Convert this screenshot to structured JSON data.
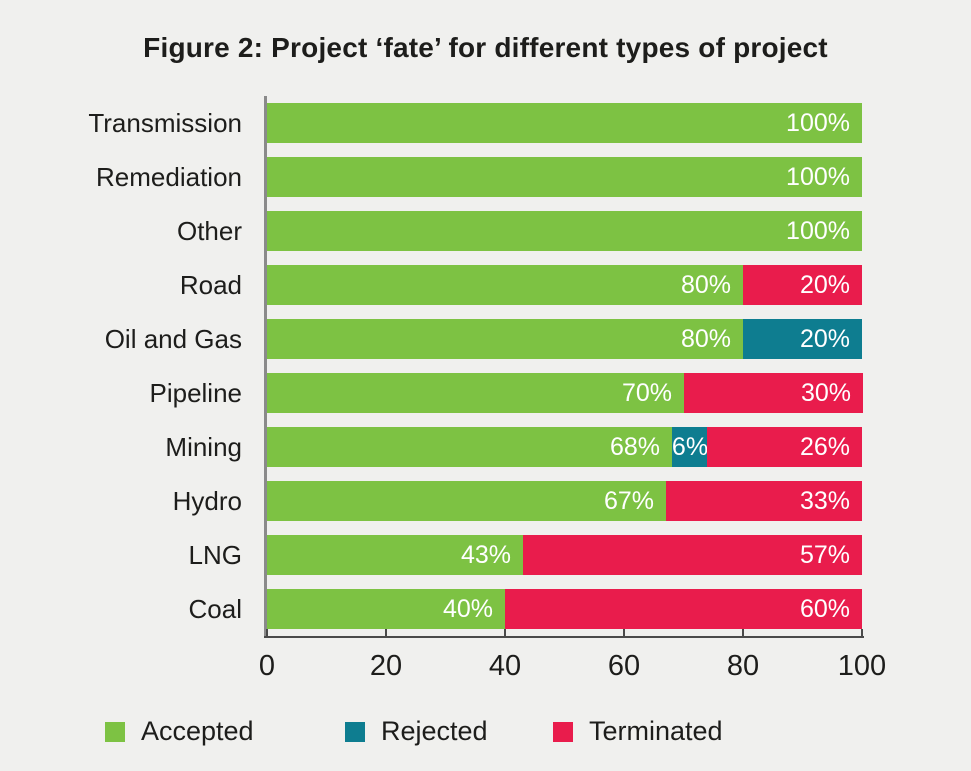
{
  "page": {
    "background_color": "#f0f0ee",
    "text_color": "#1d1d1b"
  },
  "chart_data": {
    "type": "bar",
    "orientation": "horizontal",
    "stacked": true,
    "title": "Figure 2: Project ‘fate’ for different types of project",
    "categories": [
      "Transmission",
      "Remediation",
      "Other",
      "Road",
      "Oil and Gas",
      "Pipeline",
      "Mining",
      "Hydro",
      "LNG",
      "Coal"
    ],
    "series": [
      {
        "name": "Accepted",
        "color": "#7dc243",
        "values": [
          100,
          100,
          100,
          80,
          80,
          70,
          68,
          67,
          43,
          40
        ]
      },
      {
        "name": "Rejected",
        "color": "#0e7d90",
        "values": [
          0,
          0,
          0,
          0,
          20,
          0,
          6,
          0,
          0,
          0
        ]
      },
      {
        "name": "Terminated",
        "color": "#e91c4c",
        "values": [
          0,
          0,
          0,
          20,
          0,
          30,
          26,
          33,
          57,
          60
        ]
      }
    ],
    "xlim": [
      0,
      100
    ],
    "x_ticks": [
      0,
      20,
      40,
      60,
      80,
      100
    ],
    "value_label_format": "{v}%",
    "value_label_color": "#ffffff",
    "grid": false,
    "legend_position": "bottom"
  },
  "axes": {
    "y_axis_color": "#8a8a8a",
    "x_axis_color": "#4a4a4a"
  }
}
